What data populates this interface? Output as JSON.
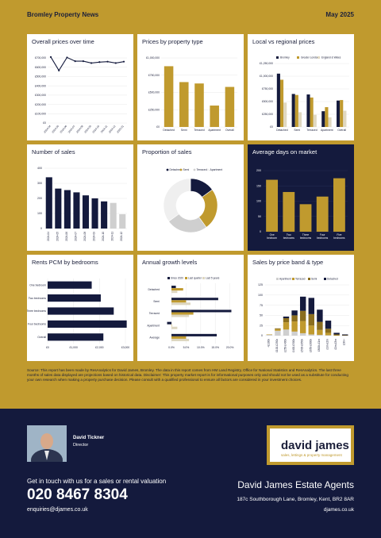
{
  "header": {
    "title": "Bromley Property News",
    "date": "May 2025"
  },
  "colors": {
    "gold": "#c09a2e",
    "navy": "#141a3d",
    "grey": "#cfcfcf",
    "lightgrey": "#e9e9e9",
    "darkgold": "#8a6d1e"
  },
  "panels": {
    "p1": "Overall prices over time",
    "p2": "Prices by property type",
    "p3": "Local vs regional prices",
    "p4": "Number of sales",
    "p5": "Proportion of sales",
    "p6": "Average days on market",
    "p7": "Rents PCM by bedrooms",
    "p8": "Annual growth levels",
    "p9": "Sales by price band & type"
  },
  "chart_data": [
    {
      "id": "overall_prices",
      "type": "line",
      "x": [
        "2024-04",
        "2024-05",
        "2024-06",
        "2024-07",
        "2024-08",
        "2024-09",
        "2024-10",
        "2024-11",
        "2024-12",
        "2025-01"
      ],
      "values": [
        710000,
        565000,
        705000,
        665000,
        665000,
        645000,
        655000,
        660000,
        645000,
        660000
      ],
      "yticks": [
        "£0",
        "£100,000",
        "£200,000",
        "£300,000",
        "£400,000",
        "£500,000",
        "£600,000",
        "£700,000"
      ],
      "xticks": [
        "2024-04",
        "2024-05",
        "2024-06",
        "2024-07",
        "2024-08",
        "2024-09",
        "2024-10",
        "2024-11",
        "2024-12",
        "2025-01"
      ],
      "ylim": [
        0,
        700000
      ]
    },
    {
      "id": "prices_by_type",
      "type": "bar",
      "categories": [
        "Detached",
        "Semi",
        "Terraced",
        "Apartment",
        "Overall"
      ],
      "values": [
        880000,
        650000,
        630000,
        310000,
        580000
      ],
      "yticks": [
        "£0",
        "£250,000",
        "£500,000",
        "£750,000",
        "£1,000,000"
      ],
      "ylim": [
        0,
        1000000
      ]
    },
    {
      "id": "local_vs_regional",
      "type": "bar",
      "categories": [
        "Detached",
        "Semi",
        "Terraced",
        "Apartment",
        "Overall"
      ],
      "series": [
        {
          "name": "Bromley",
          "values": [
            1050000,
            650000,
            640000,
            310000,
            520000
          ]
        },
        {
          "name": "Greater London",
          "values": [
            930000,
            630000,
            580000,
            390000,
            530000
          ]
        },
        {
          "name": "England & Wales",
          "values": [
            480000,
            290000,
            240000,
            190000,
            320000
          ]
        }
      ],
      "yticks": [
        "£0",
        "£250,000",
        "£500,000",
        "£750,000",
        "£1,000,000",
        "£1,250,000"
      ],
      "ylim": [
        0,
        1250000
      ]
    },
    {
      "id": "number_of_sales",
      "type": "bar",
      "categories": [
        "2024-04",
        "2024-05",
        "2024-06",
        "2024-07",
        "2024-08",
        "2024-09",
        "2024-10",
        "2024-11",
        "2024-12"
      ],
      "values": [
        340,
        265,
        255,
        240,
        220,
        200,
        180,
        170,
        95
      ],
      "yticks": [
        "0",
        "100",
        "200",
        "300",
        "400"
      ],
      "ylim": [
        0,
        400
      ]
    },
    {
      "id": "proportion_of_sales",
      "type": "pie",
      "categories": [
        "Detached",
        "Semi",
        "Terraced",
        "Apartment"
      ],
      "values": [
        15,
        25,
        25,
        35
      ]
    },
    {
      "id": "days_on_market",
      "type": "bar",
      "categories": [
        "One bedroom",
        "Two bedrooms",
        "Three bedrooms",
        "Four bedrooms",
        "Five bedrooms"
      ],
      "values": [
        170,
        130,
        90,
        115,
        175
      ],
      "yticks": [
        "0",
        "50",
        "100",
        "150",
        "200"
      ],
      "ylim": [
        0,
        200
      ]
    },
    {
      "id": "rents_pcm",
      "type": "bar",
      "categories": [
        "One bedroom",
        "Two bedrooms",
        "Three bedrooms",
        "Four bedrooms",
        "Overall"
      ],
      "values": [
        1700,
        2050,
        2550,
        3050,
        2150
      ],
      "xticks": [
        "£0",
        "£1,000",
        "£2,000",
        "£3,000"
      ],
      "xlim": [
        0,
        3000
      ]
    },
    {
      "id": "annual_growth",
      "type": "bar",
      "categories": [
        "Detached",
        "Semi",
        "Terraced",
        "Apartment",
        "Average"
      ],
      "series": [
        {
          "name": "Since 2020",
          "values": [
            1.5,
            16,
            20.5,
            -1.5,
            15.5
          ]
        },
        {
          "name": "Last quarter",
          "values": [
            4,
            5,
            7.5,
            0,
            5
          ]
        },
        {
          "name": "Last 5 years",
          "values": [
            2,
            6.5,
            6,
            2,
            6
          ]
        }
      ],
      "xticks": [
        "0.0%",
        "5.0%",
        "10.0%",
        "15.0%",
        "20.0%"
      ],
      "xlim": [
        -3,
        22
      ]
    },
    {
      "id": "sales_by_price_band",
      "type": "bar",
      "categories": [
        "<£100k",
        "£100-£250k",
        "£250-£400k",
        "£400-£500k",
        "£500-£650k",
        "£650-£800k",
        "£800k-£1m",
        "£1m-£2m",
        "£2m-£3m",
        "£3m+"
      ],
      "series": [
        {
          "name": "Apartment",
          "values": [
            2,
            12,
            15,
            10,
            6,
            3,
            2,
            1,
            0,
            0
          ]
        },
        {
          "name": "Terraced",
          "values": [
            1,
            4,
            18,
            25,
            30,
            22,
            12,
            6,
            1,
            0
          ]
        },
        {
          "name": "Semi",
          "values": [
            0,
            2,
            10,
            15,
            25,
            28,
            20,
            10,
            2,
            1
          ]
        },
        {
          "name": "Detached",
          "values": [
            0,
            0,
            4,
            12,
            35,
            40,
            30,
            20,
            4,
            2
          ]
        }
      ],
      "yticks": [
        "0",
        "25",
        "50",
        "75",
        "100",
        "125"
      ],
      "ylim": [
        0,
        125
      ]
    }
  ],
  "source_text": "Source: This report has been made by ResAnalytics for David James, Bromley. The data in this report comes from HM Land Registry, Office for National Statistics and ResAnalytics. The last three months of sales data displayed are projections based on historical data. Disclaimer: This property market report is for informational purposes only and should not be used as a substitute for conducting your own research when making a property purchase decision. Please consult with a qualified professional to ensure all factors are considered in your investment choices.",
  "footer": {
    "agent_name": "David Tickner",
    "agent_role": "Director",
    "cta": "Get in touch with us for a sales or rental valuation",
    "phone": "020 8467 8304",
    "email": "enquiries@djames.co.uk",
    "firm": "David James Estate Agents",
    "address": "187c Southborough Lane, Bromley, Kent, BR2 8AR",
    "website": "djames.co.uk",
    "logo_name": "david james",
    "logo_tagline": "sales, lettings & property management"
  }
}
